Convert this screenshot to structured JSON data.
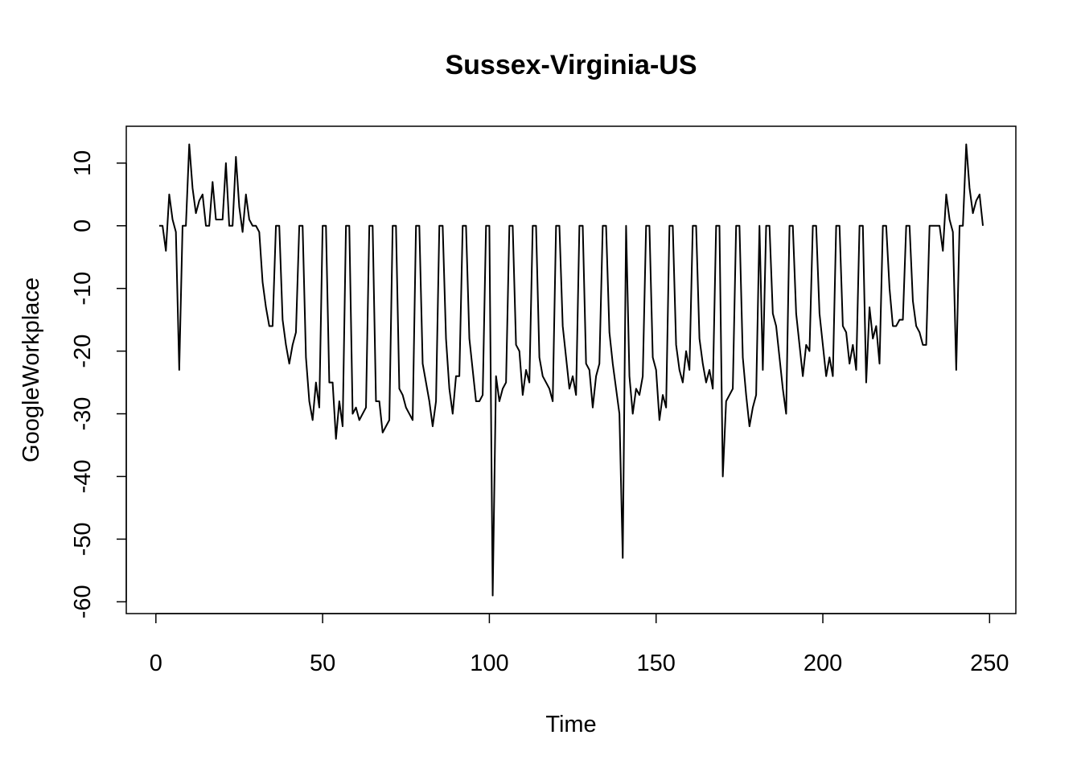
{
  "chart_data": {
    "type": "line",
    "title": "Sussex-Virginia-US",
    "xlabel": "Time",
    "ylabel": "GoogleWorkplace",
    "color": "#000000",
    "x": [
      1,
      2,
      3,
      4,
      5,
      6,
      7,
      8,
      9,
      10,
      11,
      12,
      13,
      14,
      15,
      16,
      17,
      18,
      19,
      20,
      21,
      22,
      23,
      24,
      25,
      26,
      27,
      28,
      29,
      30,
      31,
      32,
      33,
      34,
      35,
      36,
      37,
      38,
      39,
      40,
      41,
      42,
      43,
      44,
      45,
      46,
      47,
      48,
      49,
      50,
      51,
      52,
      53,
      54,
      55,
      56,
      57,
      58,
      59,
      60,
      61,
      62,
      63,
      64,
      65,
      66,
      67,
      68,
      69,
      70,
      71,
      72,
      73,
      74,
      75,
      76,
      77,
      78,
      79,
      80,
      81,
      82,
      83,
      84,
      85,
      86,
      87,
      88,
      89,
      90,
      91,
      92,
      93,
      94,
      95,
      96,
      97,
      98,
      99,
      100,
      101,
      102,
      103,
      104,
      105,
      106,
      107,
      108,
      109,
      110,
      111,
      112,
      113,
      114,
      115,
      116,
      117,
      118,
      119,
      120,
      121,
      122,
      123,
      124,
      125,
      126,
      127,
      128,
      129,
      130,
      131,
      132,
      133,
      134,
      135,
      136,
      137,
      138,
      139,
      140,
      141,
      142,
      143,
      144,
      145,
      146,
      147,
      148,
      149,
      150,
      151,
      152,
      153,
      154,
      155,
      156,
      157,
      158,
      159,
      160,
      161,
      162,
      163,
      164,
      165,
      166,
      167,
      168,
      169,
      170,
      171,
      172,
      173,
      174,
      175,
      176,
      177,
      178,
      179,
      180,
      181,
      182,
      183,
      184,
      185,
      186,
      187,
      188,
      189,
      190,
      191,
      192,
      193,
      194,
      195,
      196,
      197,
      198,
      199,
      200,
      201,
      202,
      203,
      204,
      205,
      206,
      207,
      208,
      209,
      210,
      211,
      212,
      213,
      214,
      215,
      216,
      217,
      218,
      219,
      220,
      221,
      222,
      223,
      224,
      225,
      226,
      227,
      228,
      229,
      230,
      231,
      232,
      233,
      234,
      235,
      236,
      237,
      238,
      239,
      240,
      241,
      242,
      243,
      244,
      245,
      246,
      247,
      248
    ],
    "values": [
      0,
      0,
      -4,
      5,
      1,
      -1,
      -23,
      0,
      0,
      13,
      6,
      2,
      4,
      5,
      0,
      0,
      7,
      1,
      1,
      1,
      10,
      0,
      0,
      11,
      3,
      -1,
      5,
      1,
      0,
      0,
      -1,
      -9,
      -13,
      -16,
      -16,
      0,
      0,
      -15,
      -19,
      -22,
      -19,
      -17,
      0,
      0,
      -21,
      -28,
      -31,
      -25,
      -29,
      0,
      0,
      -25,
      -25,
      -34,
      -28,
      -32,
      0,
      0,
      -30,
      -29,
      -31,
      -30,
      -29,
      0,
      0,
      -28,
      -28,
      -33,
      -32,
      -31,
      0,
      0,
      -26,
      -27,
      -29,
      -30,
      -31,
      0,
      0,
      -22,
      -25,
      -28,
      -32,
      -28,
      0,
      0,
      -18,
      -26,
      -30,
      -24,
      -24,
      0,
      0,
      -18,
      -23,
      -28,
      -28,
      -27,
      0,
      0,
      -59,
      -24,
      -28,
      -26,
      -25,
      0,
      0,
      -19,
      -20,
      -27,
      -23,
      -25,
      0,
      0,
      -21,
      -24,
      -25,
      -26,
      -28,
      0,
      0,
      -16,
      -21,
      -26,
      -24,
      -27,
      0,
      0,
      -22,
      -23,
      -29,
      -24,
      -22,
      0,
      0,
      -17,
      -22,
      -26,
      -30,
      -53,
      0,
      -24,
      -30,
      -26,
      -27,
      -24,
      0,
      0,
      -21,
      -23,
      -31,
      -27,
      -29,
      0,
      0,
      -19,
      -23,
      -25,
      -20,
      -23,
      0,
      0,
      -18,
      -22,
      -25,
      -23,
      -26,
      0,
      0,
      -40,
      -28,
      -27,
      -26,
      0,
      0,
      -21,
      -27,
      -32,
      -29,
      -27,
      0,
      -23,
      0,
      0,
      -14,
      -16,
      -21,
      -26,
      -30,
      0,
      0,
      -14,
      -19,
      -24,
      -19,
      -20,
      0,
      0,
      -14,
      -19,
      -24,
      -21,
      -24,
      0,
      0,
      -16,
      -17,
      -22,
      -19,
      -23,
      0,
      0,
      -25,
      -13,
      -18,
      -16,
      -22,
      0,
      0,
      -10,
      -16,
      -16,
      -15,
      -15,
      0,
      0,
      -12,
      -16,
      -17,
      -19,
      -19,
      0,
      0,
      0,
      0,
      -4,
      5,
      1,
      -1,
      -23,
      0,
      0,
      13,
      6,
      2,
      4,
      5,
      0
    ],
    "xlim": [
      -8.88,
      257.88
    ],
    "ylim": [
      -61.88,
      15.88
    ],
    "xticks": [
      0,
      50,
      100,
      150,
      200,
      250
    ],
    "yticks": [
      -60,
      -50,
      -40,
      -30,
      -20,
      -10,
      0,
      10
    ]
  }
}
